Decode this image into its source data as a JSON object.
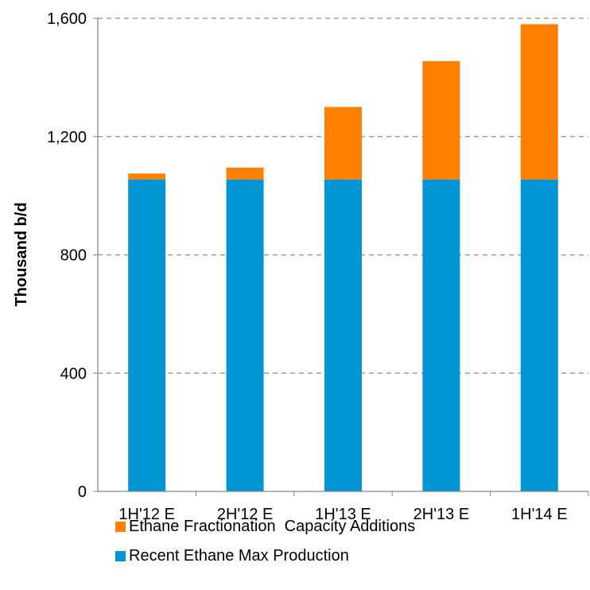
{
  "chart_data": {
    "type": "bar",
    "stacked": true,
    "categories": [
      "1H'12 E",
      "2H'12 E",
      "1H'13 E",
      "2H'13 E",
      "1H'14 E"
    ],
    "series": [
      {
        "name": "Recent Ethane Max Production",
        "color": "#0096D6",
        "values": [
          1055,
          1055,
          1055,
          1055,
          1055
        ]
      },
      {
        "name": "Ethane Fractionation  Capacity Additions",
        "color": "#FF7F00",
        "values": [
          20,
          40,
          245,
          400,
          525
        ]
      }
    ],
    "ylabel": "Thousand b/d",
    "xlabel": "",
    "ylim": [
      0,
      1600
    ],
    "yticks": [
      0,
      400,
      800,
      1200,
      1600
    ],
    "ytick_labels": [
      "0",
      "400",
      "800",
      "1,200",
      "1,600"
    ],
    "grid": true,
    "legend_position": "bottom",
    "legend_order": [
      1,
      0
    ]
  }
}
